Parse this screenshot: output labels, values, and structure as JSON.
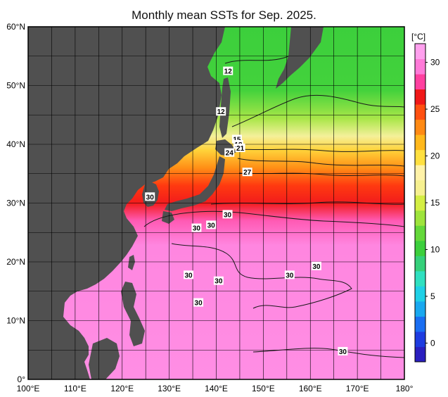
{
  "title": "Monthly mean SSTs for Sep. 2025.",
  "map": {
    "lon_range": [
      100,
      180
    ],
    "lat_range": [
      0,
      60
    ],
    "grid_step_deg": 5,
    "x_tick_labels": [
      "100°E",
      "110°E",
      "120°E",
      "130°E",
      "140°E",
      "150°E",
      "160°E",
      "170°E",
      "180°"
    ],
    "y_tick_labels": [
      "0°",
      "10°N",
      "20°N",
      "30°N",
      "40°N",
      "50°N",
      "60°N"
    ],
    "land_color": "#505050",
    "grid_color": "#000000"
  },
  "colorbar": {
    "unit_label": "[°C]",
    "min": -2,
    "max": 32,
    "tick_labels": [
      "0",
      "5",
      "10",
      "15",
      "20",
      "25",
      "30"
    ],
    "colors": [
      "#2a1fbf",
      "#1e3ce0",
      "#1a6ef2",
      "#19a8f0",
      "#1fd0e6",
      "#2fe0c0",
      "#35d07a",
      "#3ccf3c",
      "#64d83a",
      "#9ee43c",
      "#d4ee44",
      "#f6f090",
      "#fff2a8",
      "#ffe040",
      "#ffb81c",
      "#ff8a14",
      "#ff5010",
      "#f01818",
      "#ff40a0",
      "#ff7ad8",
      "#ffa0ee"
    ]
  },
  "contour_labels": [
    {
      "text": "12",
      "lon": 142.5,
      "lat": 52.5
    },
    {
      "text": "12",
      "lon": 141.0,
      "lat": 45.6
    },
    {
      "text": "15",
      "lon": 144.4,
      "lat": 40.9
    },
    {
      "text": "18",
      "lon": 144.7,
      "lat": 40.0
    },
    {
      "text": "21",
      "lon": 145.1,
      "lat": 39.4
    },
    {
      "text": "24",
      "lon": 142.8,
      "lat": 38.6
    },
    {
      "text": "27",
      "lon": 146.6,
      "lat": 35.3
    },
    {
      "text": "30",
      "lon": 125.9,
      "lat": 31.1
    },
    {
      "text": "30",
      "lon": 142.4,
      "lat": 28.1
    },
    {
      "text": "30",
      "lon": 138.9,
      "lat": 26.3
    },
    {
      "text": "30",
      "lon": 135.8,
      "lat": 25.8
    },
    {
      "text": "30",
      "lon": 134.1,
      "lat": 17.8
    },
    {
      "text": "30",
      "lon": 140.5,
      "lat": 16.8
    },
    {
      "text": "30",
      "lon": 155.6,
      "lat": 17.8
    },
    {
      "text": "30",
      "lon": 161.3,
      "lat": 19.3
    },
    {
      "text": "30",
      "lon": 166.9,
      "lat": 4.8
    },
    {
      "text": "30",
      "lon": 136.2,
      "lat": 13.1
    }
  ]
}
